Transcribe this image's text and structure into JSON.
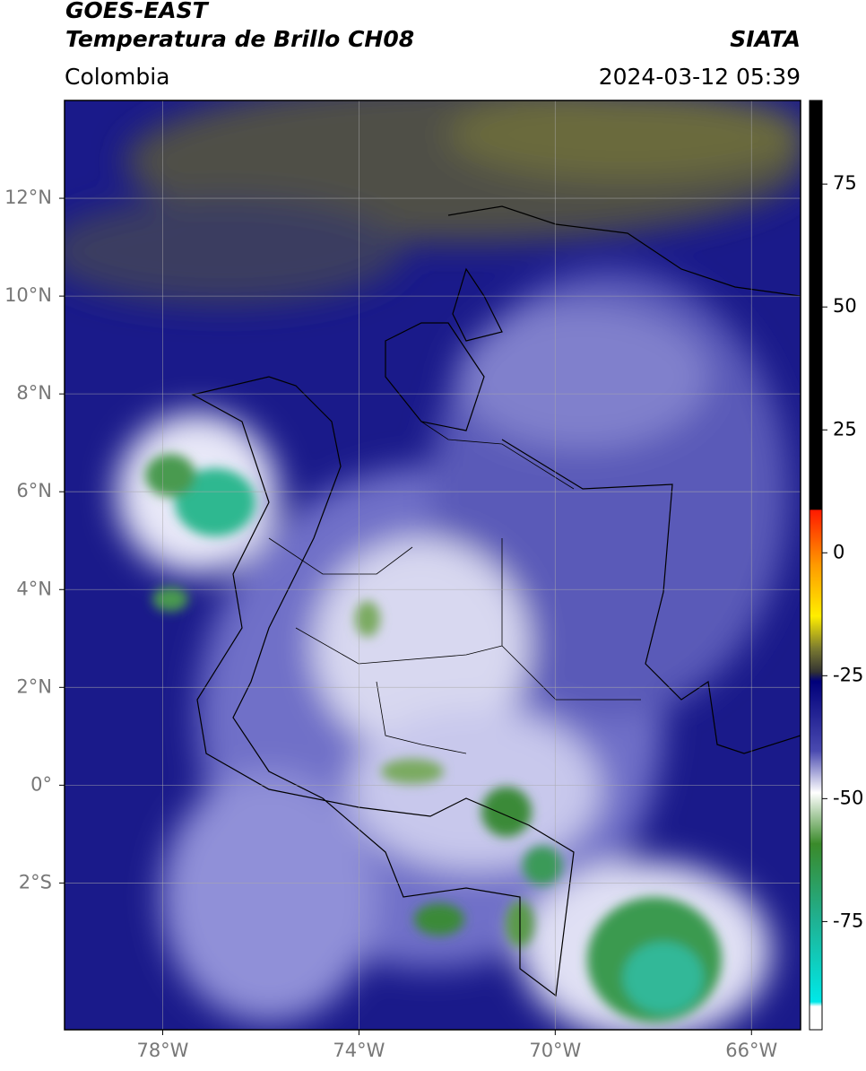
{
  "header": {
    "title": "GOES-EAST",
    "subtitle": "Temperatura de Brillo CH08",
    "source": "SIATA",
    "region": "Colombia",
    "datetime": "2024-03-12 05:39"
  },
  "map": {
    "lon_range": [
      -80,
      -65
    ],
    "lat_range": [
      -5,
      14
    ],
    "lat_ticks": [
      {
        "value": 12,
        "label": "12°N"
      },
      {
        "value": 10,
        "label": "10°N"
      },
      {
        "value": 8,
        "label": "8°N"
      },
      {
        "value": 6,
        "label": "6°N"
      },
      {
        "value": 4,
        "label": "4°N"
      },
      {
        "value": 2,
        "label": "2°N"
      },
      {
        "value": 0,
        "label": "0°"
      },
      {
        "value": -2,
        "label": "2°S"
      }
    ],
    "lon_ticks": [
      {
        "value": -78,
        "label": "78°W"
      },
      {
        "value": -74,
        "label": "74°W"
      },
      {
        "value": -70,
        "label": "70°W"
      },
      {
        "value": -66,
        "label": "66°W"
      }
    ]
  },
  "colorbar": {
    "range": [
      -97,
      92
    ],
    "ticks": [
      75,
      50,
      25,
      0,
      -25,
      -50,
      -75
    ]
  }
}
